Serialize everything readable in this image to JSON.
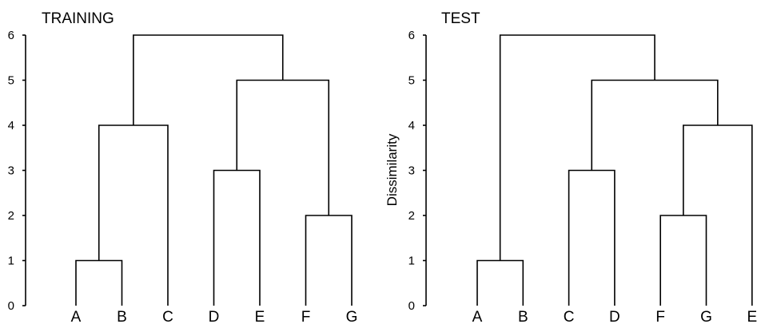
{
  "chart_data": [
    {
      "type": "dendrogram",
      "title": "TRAINING",
      "ylabel": "",
      "ylim": [
        0,
        6
      ],
      "yticks": [
        "0",
        "1",
        "2",
        "3",
        "4",
        "5",
        "6"
      ],
      "leaves": [
        "A",
        "B",
        "C",
        "D",
        "E",
        "F",
        "G"
      ],
      "merges": [
        {
          "left": "A",
          "right": "B",
          "height": 1
        },
        {
          "left": "F",
          "right": "G",
          "height": 2
        },
        {
          "left": "D",
          "right": "E",
          "height": 3
        },
        {
          "left": "AB",
          "right": "C",
          "height": 4
        },
        {
          "left": "DE",
          "right": "FG",
          "height": 5
        },
        {
          "left": "ABC",
          "right": "DEFG",
          "height": 6
        }
      ]
    },
    {
      "type": "dendrogram",
      "title": "TEST",
      "ylabel": "Dissimilarity",
      "ylim": [
        0,
        6
      ],
      "yticks": [
        "0",
        "1",
        "2",
        "3",
        "4",
        "5",
        "6"
      ],
      "leaves": [
        "A",
        "B",
        "C",
        "D",
        "F",
        "G",
        "E"
      ],
      "merges": [
        {
          "left": "A",
          "right": "B",
          "height": 1
        },
        {
          "left": "F",
          "right": "G",
          "height": 2
        },
        {
          "left": "C",
          "right": "D",
          "height": 3
        },
        {
          "left": "FG",
          "right": "E",
          "height": 4
        },
        {
          "left": "CD",
          "right": "FGE",
          "height": 5
        },
        {
          "left": "AB",
          "right": "CDFGE",
          "height": 6
        }
      ]
    }
  ]
}
